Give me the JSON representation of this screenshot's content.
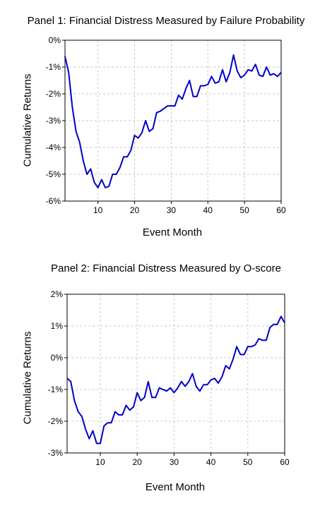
{
  "chart_data": [
    {
      "type": "line",
      "title": "Panel 1: Financial Distress Measured by Failure Probability",
      "xlabel": "Event Month",
      "ylabel": "Cumulative Returns",
      "xlim": [
        1,
        60
      ],
      "ylim": [
        -6,
        0
      ],
      "xticks": [
        10,
        20,
        30,
        40,
        50,
        60
      ],
      "yticks": [
        0,
        -1,
        -2,
        -3,
        -4,
        -5,
        -6
      ],
      "ytick_labels": [
        "0%",
        "-1%",
        "-2%",
        "-3%",
        "-4%",
        "-5%",
        "-6%"
      ],
      "grid": true,
      "line_color": "#0000cc",
      "series": [
        {
          "x": [
            1,
            2,
            3,
            4,
            5,
            6,
            7,
            8,
            9,
            10,
            11,
            12,
            13,
            14,
            15,
            16,
            17,
            18,
            19,
            20,
            21,
            22,
            23,
            24,
            25,
            26,
            27,
            28,
            29,
            30,
            31,
            32,
            33,
            34,
            35,
            36,
            37,
            38,
            39,
            40,
            41,
            42,
            43,
            44,
            45,
            46,
            47,
            48,
            49,
            50,
            51,
            52,
            53,
            54,
            55,
            56,
            57,
            58,
            59,
            60
          ],
          "values": [
            -0.6,
            -1.2,
            -2.5,
            -3.4,
            -3.8,
            -4.5,
            -5.0,
            -4.8,
            -5.3,
            -5.5,
            -5.2,
            -5.5,
            -5.45,
            -5.0,
            -5.0,
            -4.75,
            -4.35,
            -4.35,
            -4.1,
            -3.55,
            -3.65,
            -3.45,
            -3.0,
            -3.4,
            -3.3,
            -2.7,
            -2.65,
            -2.55,
            -2.45,
            -2.45,
            -2.45,
            -2.05,
            -2.2,
            -1.8,
            -1.5,
            -2.1,
            -2.1,
            -1.7,
            -1.7,
            -1.65,
            -1.35,
            -1.6,
            -1.55,
            -1.1,
            -1.55,
            -1.2,
            -0.55,
            -1.15,
            -1.4,
            -1.3,
            -1.1,
            -1.15,
            -0.9,
            -1.3,
            -1.35,
            -1.0,
            -1.3,
            -1.25,
            -1.35,
            -1.2
          ]
        }
      ]
    },
    {
      "type": "line",
      "title": "Panel 2: Financial Distress Measured by O-score",
      "xlabel": "Event Month",
      "ylabel": "Cumulative Returns",
      "xlim": [
        1,
        60
      ],
      "ylim": [
        -3,
        2
      ],
      "xticks": [
        10,
        20,
        30,
        40,
        50,
        60
      ],
      "yticks": [
        2,
        1,
        0,
        -1,
        -2,
        -3
      ],
      "ytick_labels": [
        "2%",
        "1%",
        "0%",
        "-1%",
        "-2%",
        "-3%"
      ],
      "grid": true,
      "line_color": "#0000cc",
      "series": [
        {
          "x": [
            1,
            2,
            3,
            4,
            5,
            6,
            7,
            8,
            9,
            10,
            11,
            12,
            13,
            14,
            15,
            16,
            17,
            18,
            19,
            20,
            21,
            22,
            23,
            24,
            25,
            26,
            27,
            28,
            29,
            30,
            31,
            32,
            33,
            34,
            35,
            36,
            37,
            38,
            39,
            40,
            41,
            42,
            43,
            44,
            45,
            46,
            47,
            48,
            49,
            50,
            51,
            52,
            53,
            54,
            55,
            56,
            57,
            58,
            59,
            60
          ],
          "values": [
            -0.65,
            -0.75,
            -1.35,
            -1.7,
            -1.85,
            -2.25,
            -2.55,
            -2.3,
            -2.7,
            -2.7,
            -2.15,
            -2.05,
            -2.05,
            -1.7,
            -1.8,
            -1.8,
            -1.5,
            -1.65,
            -1.55,
            -1.1,
            -1.35,
            -1.25,
            -0.75,
            -1.25,
            -1.25,
            -0.95,
            -1.0,
            -1.05,
            -0.95,
            -1.1,
            -0.95,
            -0.75,
            -0.9,
            -0.75,
            -0.5,
            -0.9,
            -1.05,
            -0.85,
            -0.85,
            -0.7,
            -0.65,
            -0.8,
            -0.6,
            -0.25,
            -0.35,
            -0.05,
            0.35,
            0.1,
            0.1,
            0.35,
            0.35,
            0.4,
            0.6,
            0.55,
            0.55,
            0.95,
            1.05,
            1.05,
            1.3,
            1.1
          ]
        }
      ]
    }
  ]
}
